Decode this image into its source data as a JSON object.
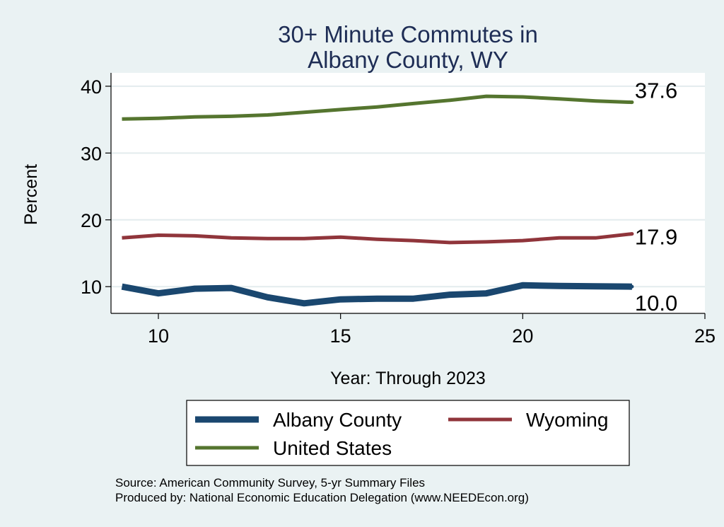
{
  "chart_data": {
    "type": "line",
    "title": [
      "30+ Minute Commutes in",
      "Albany County, WY"
    ],
    "xlabel": "Year: Through 2023",
    "ylabel": "Percent",
    "x": [
      9,
      10,
      11,
      12,
      13,
      14,
      15,
      16,
      17,
      18,
      19,
      20,
      21,
      22,
      23
    ],
    "xlim": [
      8.7,
      25
    ],
    "ylim": [
      6,
      42
    ],
    "xticks": [
      10,
      15,
      20,
      25
    ],
    "yticks": [
      10,
      20,
      30,
      40
    ],
    "grid": true,
    "legend_position": "bottom",
    "series": [
      {
        "name": "Albany County",
        "color": "#1a476f",
        "values": [
          10.0,
          9.0,
          9.7,
          9.8,
          8.4,
          7.5,
          8.1,
          8.2,
          8.2,
          8.8,
          9.0,
          10.2,
          10.1,
          10.05,
          10.0
        ],
        "end_label": "10.0"
      },
      {
        "name": "Wyoming",
        "color": "#90353b",
        "values": [
          17.3,
          17.7,
          17.6,
          17.3,
          17.2,
          17.2,
          17.4,
          17.1,
          16.9,
          16.6,
          16.7,
          16.9,
          17.3,
          17.3,
          17.9
        ],
        "end_label": "17.9"
      },
      {
        "name": "United States",
        "color": "#55752f",
        "values": [
          35.1,
          35.2,
          35.4,
          35.5,
          35.7,
          36.1,
          36.5,
          36.9,
          37.4,
          37.9,
          38.5,
          38.4,
          38.1,
          37.8,
          37.6
        ],
        "end_label": "37.6"
      }
    ]
  },
  "notes": {
    "source": "Source: American Community Survey, 5-yr Summary Files",
    "produced": "Produced by: National Economic Education Delegation (www.NEEDEcon.org)"
  }
}
